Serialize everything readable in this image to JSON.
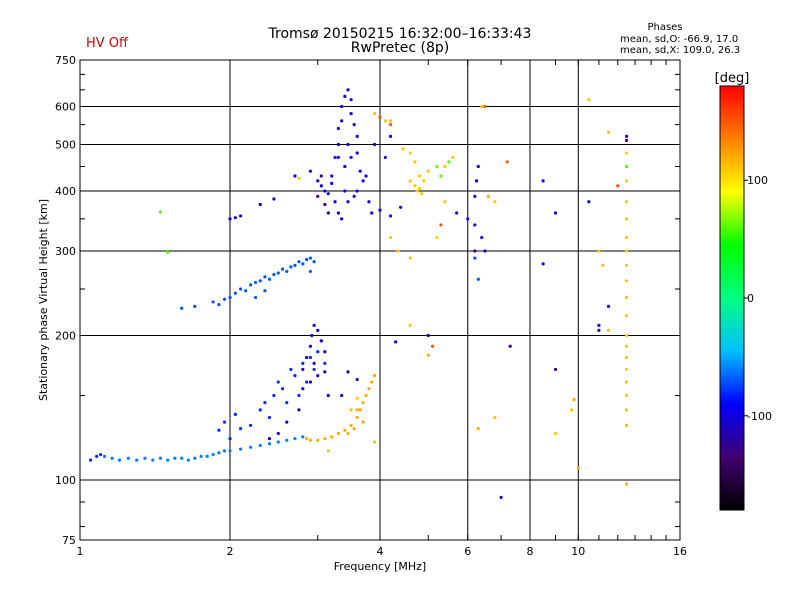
{
  "header": {
    "title_line1": "Tromsø 20150215 16:32:00–16:33:43",
    "title_line2": "RwPretec (8p)",
    "status": "HV Off",
    "phases_title": "Phases",
    "phases_line1": "mean, sd,O: -66.9, 17.0",
    "phases_line2": "mean, sd,X: 109.0, 26.3"
  },
  "colors": {
    "status": "#cc0000"
  },
  "chart_data": {
    "type": "scatter",
    "xlabel": "Frequency [MHz]",
    "ylabel": "Stationary phase Virtual Height [km]",
    "x_scale": "log",
    "y_scale": "log",
    "xlim": [
      1,
      16
    ],
    "ylim": [
      75,
      750
    ],
    "x_ticks": [
      1,
      2,
      4,
      6,
      8,
      10,
      16
    ],
    "y_ticks": [
      75,
      100,
      200,
      300,
      400,
      500,
      600,
      750
    ],
    "x_gridlines": [
      1,
      2,
      4,
      6,
      8,
      10,
      16
    ],
    "y_gridlines": [
      100,
      200,
      300,
      400,
      500,
      600,
      750
    ],
    "grid": true,
    "colorbar": {
      "label": "[deg]",
      "range": [
        -180,
        180
      ],
      "ticks": [
        100,
        0,
        -100
      ],
      "colormap": [
        "#000000",
        "#400070",
        "#0000ff",
        "#00c0ff",
        "#00ff80",
        "#00ff00",
        "#ffff00",
        "#ff8000",
        "#ff0000"
      ]
    },
    "series": [
      {
        "phase": -60,
        "points": [
          [
            1.12,
            112
          ],
          [
            1.16,
            111
          ],
          [
            1.2,
            110
          ],
          [
            1.25,
            111
          ],
          [
            1.3,
            110
          ],
          [
            1.35,
            111
          ],
          [
            1.4,
            110
          ],
          [
            1.45,
            111
          ],
          [
            1.5,
            110
          ],
          [
            1.55,
            111
          ],
          [
            1.6,
            111
          ],
          [
            1.65,
            110
          ],
          [
            1.7,
            111
          ],
          [
            1.75,
            112
          ],
          [
            1.8,
            112
          ],
          [
            1.85,
            113
          ],
          [
            1.9,
            114
          ],
          [
            1.95,
            115
          ],
          [
            2.0,
            115
          ],
          [
            2.1,
            116
          ],
          [
            2.2,
            117
          ],
          [
            2.3,
            118
          ],
          [
            2.4,
            119
          ],
          [
            2.5,
            120
          ],
          [
            2.6,
            121
          ],
          [
            2.7,
            122
          ],
          [
            2.8,
            123
          ]
        ]
      },
      {
        "phase": -80,
        "points": [
          [
            1.05,
            110
          ],
          [
            1.08,
            112
          ],
          [
            1.1,
            113
          ],
          [
            1.9,
            127
          ],
          [
            1.95,
            132
          ],
          [
            2.0,
            122
          ],
          [
            2.05,
            137
          ],
          [
            2.1,
            128
          ],
          [
            2.2,
            130
          ],
          [
            2.3,
            140
          ],
          [
            2.35,
            145
          ],
          [
            2.4,
            135
          ],
          [
            2.45,
            150
          ],
          [
            2.5,
            160
          ],
          [
            2.55,
            155
          ],
          [
            2.6,
            145
          ],
          [
            2.65,
            170
          ],
          [
            2.7,
            165
          ],
          [
            2.75,
            150
          ],
          [
            2.8,
            175
          ],
          [
            2.85,
            160
          ],
          [
            2.9,
            180
          ],
          [
            2.95,
            170
          ],
          [
            3.0,
            185
          ],
          [
            3.05,
            195
          ],
          [
            3.1,
            175
          ]
        ]
      },
      {
        "phase": -110,
        "points": [
          [
            2.8,
            170
          ],
          [
            2.85,
            180
          ],
          [
            2.9,
            190
          ],
          [
            2.92,
            200
          ],
          [
            2.95,
            210
          ],
          [
            3.0,
            205
          ],
          [
            3.05,
            195
          ],
          [
            3.1,
            185
          ],
          [
            2.95,
            175
          ],
          [
            3.0,
            165
          ],
          [
            2.9,
            160
          ],
          [
            2.8,
            155
          ],
          [
            3.1,
            168
          ],
          [
            2.75,
            140
          ],
          [
            2.6,
            132
          ],
          [
            3.15,
            150
          ],
          [
            2.5,
            125
          ],
          [
            2.4,
            122
          ],
          [
            3.45,
            168
          ],
          [
            3.6,
            162
          ],
          [
            3.35,
            150
          ],
          [
            4.3,
            194
          ],
          [
            5.0,
            200
          ]
        ]
      },
      {
        "phase": -70,
        "points": [
          [
            1.6,
            228
          ],
          [
            1.7,
            230
          ],
          [
            1.85,
            235
          ],
          [
            1.9,
            232
          ],
          [
            1.95,
            238
          ],
          [
            2.0,
            240
          ],
          [
            2.05,
            245
          ],
          [
            2.1,
            250
          ],
          [
            2.15,
            248
          ],
          [
            2.2,
            255
          ],
          [
            2.25,
            258
          ],
          [
            2.3,
            260
          ],
          [
            2.35,
            265
          ],
          [
            2.4,
            262
          ],
          [
            2.45,
            268
          ],
          [
            2.5,
            270
          ],
          [
            2.55,
            275
          ],
          [
            2.6,
            272
          ],
          [
            2.65,
            278
          ],
          [
            2.7,
            280
          ],
          [
            2.75,
            285
          ],
          [
            2.8,
            282
          ],
          [
            2.85,
            288
          ],
          [
            2.9,
            290
          ],
          [
            2.9,
            272
          ],
          [
            2.95,
            285
          ],
          [
            2.35,
            248
          ],
          [
            2.25,
            240
          ],
          [
            6.2,
            290
          ],
          [
            6.3,
            262
          ]
        ]
      },
      {
        "phase": -100,
        "points": [
          [
            2.0,
            350
          ],
          [
            2.05,
            352
          ],
          [
            2.1,
            355
          ],
          [
            2.3,
            375
          ],
          [
            2.45,
            385
          ],
          [
            2.7,
            430
          ],
          [
            2.9,
            440
          ],
          [
            3.0,
            420
          ],
          [
            3.05,
            410
          ],
          [
            3.1,
            400
          ],
          [
            3.15,
            395
          ],
          [
            3.2,
            430
          ],
          [
            3.25,
            470
          ],
          [
            3.3,
            500
          ],
          [
            3.3,
            540
          ],
          [
            3.35,
            560
          ],
          [
            3.35,
            600
          ],
          [
            3.4,
            630
          ],
          [
            3.45,
            650
          ],
          [
            3.5,
            620
          ],
          [
            3.5,
            580
          ],
          [
            3.55,
            550
          ],
          [
            3.6,
            520
          ],
          [
            3.6,
            480
          ],
          [
            3.65,
            440
          ],
          [
            3.7,
            420
          ],
          [
            3.8,
            380
          ],
          [
            3.85,
            360
          ],
          [
            4.0,
            365
          ],
          [
            4.2,
            355
          ],
          [
            4.4,
            370
          ],
          [
            3.4,
            450
          ],
          [
            3.45,
            380
          ],
          [
            3.4,
            400
          ],
          [
            3.55,
            390
          ],
          [
            3.3,
            360
          ],
          [
            3.35,
            350
          ],
          [
            3.25,
            380
          ],
          [
            3.2,
            415
          ],
          [
            3.5,
            470
          ],
          [
            3.45,
            500
          ],
          [
            3.3,
            470
          ],
          [
            3.6,
            400
          ],
          [
            3.75,
            430
          ],
          [
            3.9,
            500
          ],
          [
            4.1,
            470
          ],
          [
            4.2,
            520
          ],
          [
            5.7,
            360
          ],
          [
            6.0,
            350
          ],
          [
            6.2,
            340
          ],
          [
            6.25,
            420
          ],
          [
            6.2,
            390
          ],
          [
            6.3,
            450
          ],
          [
            6.4,
            320
          ],
          [
            6.5,
            300
          ],
          [
            6.6,
            390
          ],
          [
            8.5,
            420
          ],
          [
            9.0,
            360
          ],
          [
            10.5,
            380
          ],
          [
            12.5,
            520
          ],
          [
            11.0,
            210
          ],
          [
            11.5,
            230
          ],
          [
            7.0,
            92
          ],
          [
            8.5,
            282
          ]
        ]
      },
      {
        "phase": 120,
        "points": [
          [
            2.85,
            122
          ],
          [
            2.9,
            121
          ],
          [
            3.0,
            121
          ],
          [
            3.1,
            122
          ],
          [
            3.2,
            123
          ],
          [
            3.3,
            125
          ],
          [
            3.4,
            127
          ],
          [
            3.5,
            130
          ],
          [
            3.6,
            135
          ],
          [
            3.65,
            140
          ],
          [
            3.7,
            145
          ],
          [
            3.75,
            150
          ],
          [
            3.8,
            155
          ],
          [
            3.85,
            160
          ],
          [
            3.9,
            165
          ],
          [
            3.55,
            128
          ],
          [
            3.45,
            125
          ],
          [
            3.7,
            132
          ],
          [
            3.6,
            140
          ],
          [
            6.3,
            128
          ],
          [
            5.0,
            182
          ],
          [
            10.0,
            106
          ],
          [
            12.5,
            98
          ],
          [
            9.8,
            147
          ],
          [
            12.5,
            130
          ]
        ]
      },
      {
        "phase": 110,
        "points": [
          [
            2.75,
            425
          ],
          [
            4.2,
            560
          ],
          [
            4.45,
            490
          ],
          [
            4.6,
            480
          ],
          [
            4.7,
            460
          ],
          [
            4.8,
            430
          ],
          [
            4.9,
            420
          ],
          [
            4.7,
            410
          ],
          [
            4.75,
            400
          ],
          [
            4.8,
            405
          ],
          [
            4.85,
            395
          ],
          [
            4.6,
            420
          ],
          [
            5.0,
            440
          ],
          [
            5.4,
            450
          ],
          [
            5.6,
            470
          ],
          [
            4.2,
            320
          ],
          [
            4.35,
            300
          ],
          [
            3.9,
            580
          ],
          [
            4.1,
            560
          ],
          [
            5.4,
            380
          ],
          [
            5.2,
            320
          ],
          [
            4.6,
            290
          ],
          [
            6.6,
            390
          ],
          [
            6.8,
            380
          ],
          [
            11.5,
            530
          ],
          [
            12.5,
            480
          ],
          [
            12.5,
            420
          ],
          [
            12.5,
            380
          ],
          [
            12.5,
            350
          ],
          [
            12.5,
            320
          ],
          [
            12.5,
            300
          ],
          [
            12.5,
            280
          ],
          [
            12.5,
            260
          ],
          [
            12.5,
            240
          ],
          [
            12.5,
            220
          ],
          [
            12.5,
            200
          ],
          [
            12.5,
            190
          ],
          [
            12.5,
            180
          ],
          [
            12.5,
            170
          ],
          [
            12.5,
            160
          ],
          [
            12.5,
            150
          ],
          [
            12.5,
            140
          ],
          [
            12.5,
            130
          ],
          [
            11.0,
            300
          ],
          [
            11.2,
            280
          ],
          [
            10.5,
            620
          ],
          [
            6.4,
            600
          ],
          [
            3.6,
            148
          ],
          [
            3.5,
            140
          ],
          [
            3.9,
            120
          ],
          [
            4.6,
            210
          ],
          [
            11.5,
            205
          ],
          [
            6.8,
            135
          ],
          [
            9.7,
            140
          ],
          [
            3.15,
            115
          ],
          [
            9.0,
            125
          ]
        ]
      },
      {
        "phase": 60,
        "points": [
          [
            5.2,
            450
          ],
          [
            5.3,
            430
          ],
          [
            5.5,
            460
          ],
          [
            1.45,
            362
          ],
          [
            1.5,
            298
          ],
          [
            12.5,
            450
          ]
        ]
      },
      {
        "phase": -130,
        "points": [
          [
            3.1,
            375
          ],
          [
            3.0,
            390
          ],
          [
            3.05,
            430
          ],
          [
            3.15,
            360
          ],
          [
            6.2,
            300
          ],
          [
            9.0,
            170
          ],
          [
            11.0,
            205
          ],
          [
            7.3,
            190
          ],
          [
            12.5,
            510
          ]
        ]
      },
      {
        "phase": 150,
        "points": [
          [
            4.0,
            570
          ],
          [
            4.2,
            550
          ],
          [
            5.1,
            190
          ],
          [
            5.3,
            340
          ],
          [
            6.5,
            600
          ],
          [
            7.2,
            460
          ],
          [
            12.0,
            410
          ]
        ]
      }
    ]
  }
}
